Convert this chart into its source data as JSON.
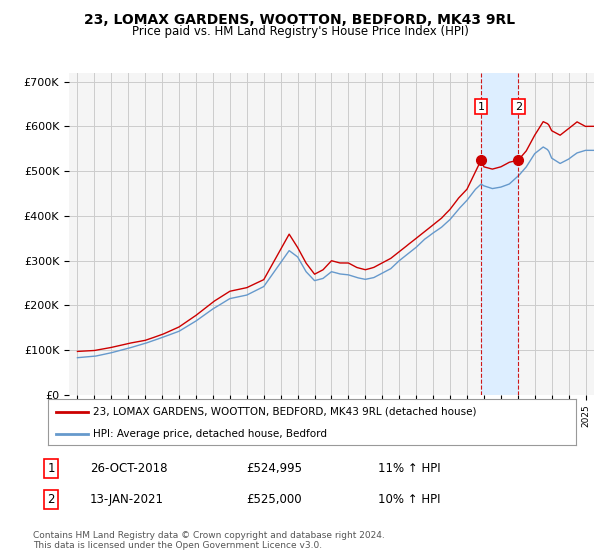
{
  "title": "23, LOMAX GARDENS, WOOTTON, BEDFORD, MK43 9RL",
  "subtitle": "Price paid vs. HM Land Registry's House Price Index (HPI)",
  "background_color": "#ffffff",
  "plot_bg_color": "#f5f5f5",
  "grid_color": "#cccccc",
  "shade_color": "#ddeeff",
  "legend_label_red": "23, LOMAX GARDENS, WOOTTON, BEDFORD, MK43 9RL (detached house)",
  "legend_label_blue": "HPI: Average price, detached house, Bedford",
  "footnote": "Contains HM Land Registry data © Crown copyright and database right 2024.\nThis data is licensed under the Open Government Licence v3.0.",
  "sale1_label": "1",
  "sale1_date": "26-OCT-2018",
  "sale1_price": "£524,995",
  "sale1_hpi": "11% ↑ HPI",
  "sale2_label": "2",
  "sale2_date": "13-JAN-2021",
  "sale2_price": "£525,000",
  "sale2_hpi": "10% ↑ HPI",
  "red_color": "#cc0000",
  "blue_color": "#6699cc",
  "marker1_x": 2018.83,
  "marker1_y": 524995,
  "marker2_x": 2021.04,
  "marker2_y": 525000,
  "vline1_x": 2018.83,
  "vline2_x": 2021.04,
  "ylim": [
    0,
    720000
  ],
  "yticks": [
    0,
    100000,
    200000,
    300000,
    400000,
    500000,
    600000,
    700000
  ],
  "ytick_labels": [
    "£0",
    "£100K",
    "£200K",
    "£300K",
    "£400K",
    "£500K",
    "£600K",
    "£700K"
  ],
  "xlim_min": 1994.5,
  "xlim_max": 2025.5
}
